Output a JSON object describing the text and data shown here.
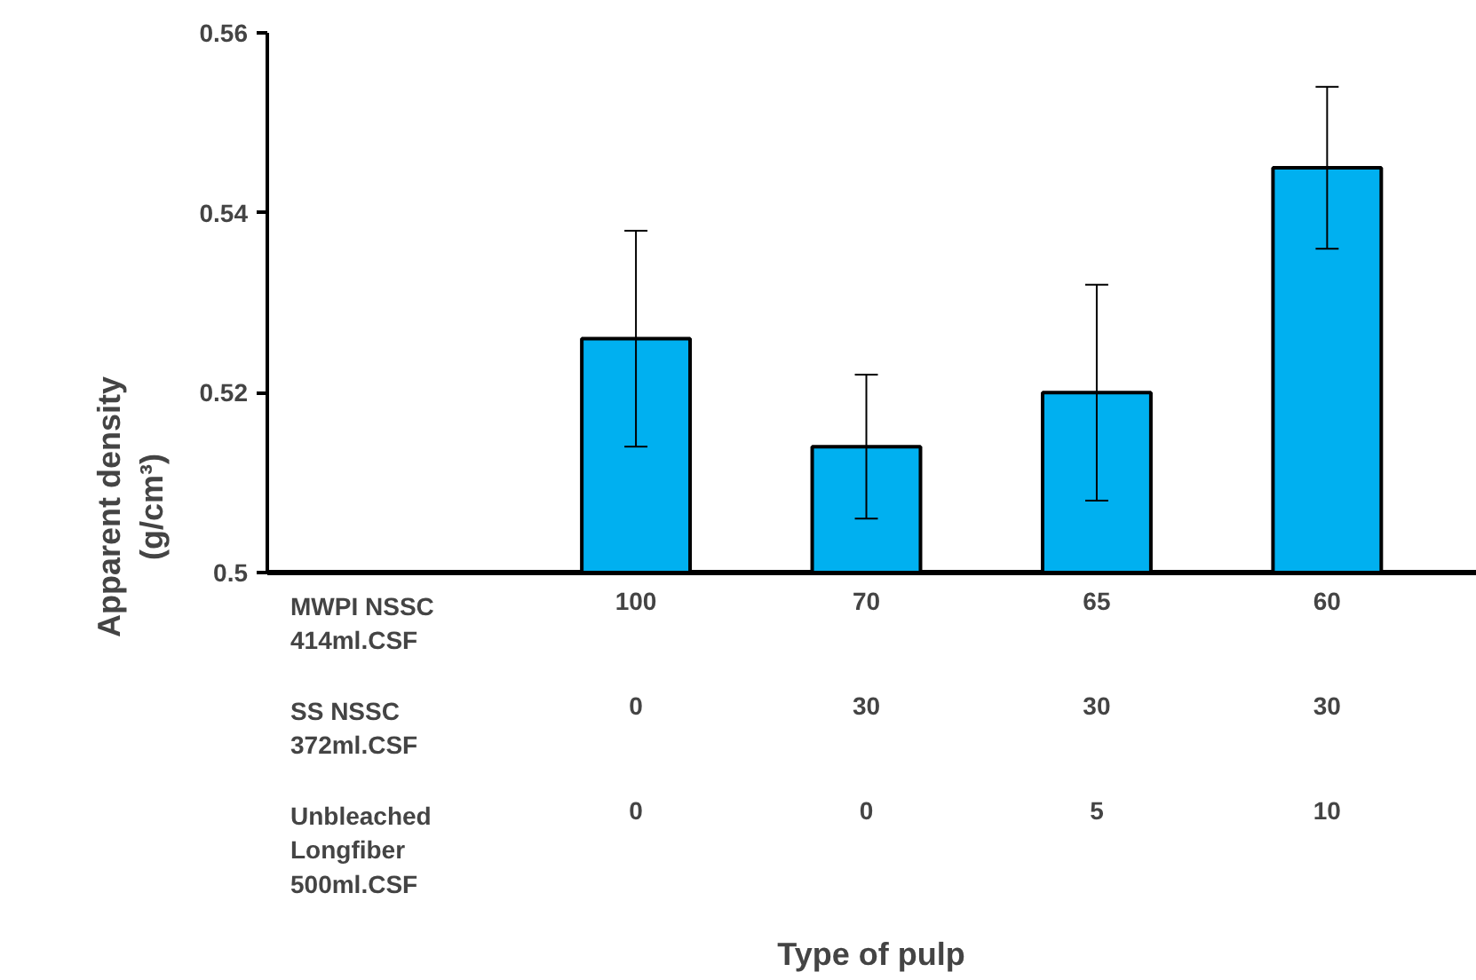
{
  "chart_data": {
    "type": "bar",
    "categories": [
      null,
      "100",
      "70",
      "65",
      "60"
    ],
    "values": [
      null,
      0.526,
      0.514,
      0.52,
      0.545
    ],
    "errors": [
      null,
      0.012,
      0.008,
      0.012,
      0.009
    ],
    "color": "#00b0f0",
    "ylabel": "Apparent density\n(g/cm³)",
    "ylim": [
      0.5,
      0.56
    ],
    "yticks": [
      0.5,
      0.52,
      0.54,
      0.56
    ],
    "grid": false,
    "annotations": [
      "MWPI NSSC\n414ml.CSF",
      "SS NSSC\n372ml.CSF",
      "0",
      "30",
      "30",
      "30",
      "Unbleached\nLongfiber\n500ml.CSF",
      "0",
      "0",
      "5",
      "10",
      "Type of pulp"
    ]
  }
}
